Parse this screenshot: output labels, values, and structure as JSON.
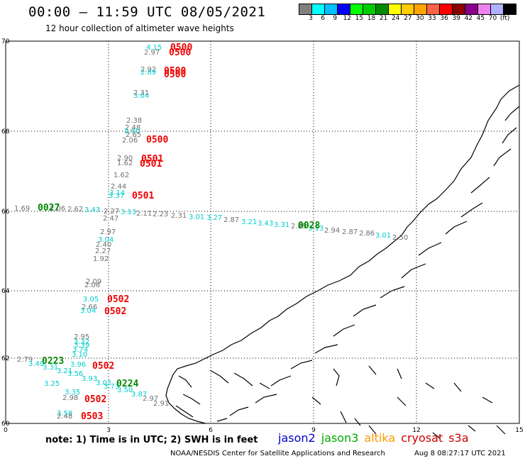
{
  "header": {
    "title": "00:00 – 11:59 UTC 08/05/2021",
    "subtitle": "12 hour collection of altimeter wave heights"
  },
  "colorbar": {
    "colors": [
      "#808080",
      "#00ffff",
      "#00bfff",
      "#0000ff",
      "#00ff00",
      "#00cd00",
      "#008b00",
      "#ffff00",
      "#ffcc00",
      "#ffa500",
      "#ff6347",
      "#ff0000",
      "#8b0000",
      "#8b008b",
      "#ee82ee",
      "#b0b0ff",
      "#000000"
    ],
    "labels": [
      "3",
      "6",
      "9",
      "12",
      "15",
      "18",
      "21",
      "24",
      "27",
      "30",
      "33",
      "36",
      "39",
      "42",
      "45",
      "70",
      "(ft)"
    ]
  },
  "axes": {
    "y_ticks": [
      "70",
      "68",
      "66",
      "64",
      "62",
      "60"
    ],
    "x_ticks": [
      "0",
      "3",
      "6",
      "9",
      "12",
      "15"
    ]
  },
  "observations": [
    {
      "v": "4.15",
      "c": "#00cccc"
    },
    {
      "v": "2.97",
      "c": "#707070"
    },
    {
      "v": "2.92",
      "c": "#707070"
    },
    {
      "v": "2.89",
      "c": "#00cccc"
    },
    {
      "v": "2.31",
      "c": "#707070"
    },
    {
      "v": "3.04",
      "c": "#00cccc"
    },
    {
      "v": "2.38",
      "c": "#707070"
    },
    {
      "v": "2.48",
      "c": "#707070"
    },
    {
      "v": "2.60",
      "c": "#00cccc"
    },
    {
      "v": "2.65",
      "c": "#707070"
    },
    {
      "v": "2.06",
      "c": "#707070"
    },
    {
      "v": "2.90",
      "c": "#707070"
    },
    {
      "v": "1.62",
      "c": "#707070"
    },
    {
      "v": "1.62",
      "c": "#707070"
    },
    {
      "v": "2.44",
      "c": "#707070"
    },
    {
      "v": "3.14",
      "c": "#00cccc"
    },
    {
      "v": "3.37",
      "c": "#00cccc"
    },
    {
      "v": "1.69",
      "c": "#707070"
    },
    {
      "v": "2.06",
      "c": "#707070"
    },
    {
      "v": "2.62",
      "c": "#707070"
    },
    {
      "v": "3.43",
      "c": "#00cccc"
    },
    {
      "v": "2.27",
      "c": "#707070"
    },
    {
      "v": "3.13",
      "c": "#00cccc"
    },
    {
      "v": "2.11",
      "c": "#707070"
    },
    {
      "v": "2.23",
      "c": "#707070"
    },
    {
      "v": "2.31",
      "c": "#707070"
    },
    {
      "v": "3.01",
      "c": "#00cccc"
    },
    {
      "v": "3.27",
      "c": "#00cccc"
    },
    {
      "v": "2.87",
      "c": "#707070"
    },
    {
      "v": "3.21",
      "c": "#00cccc"
    },
    {
      "v": "3.43",
      "c": "#00cccc"
    },
    {
      "v": "3.31",
      "c": "#00cccc"
    },
    {
      "v": "2.89",
      "c": "#707070"
    },
    {
      "v": "3.13",
      "c": "#00cccc"
    },
    {
      "v": "2.94",
      "c": "#707070"
    },
    {
      "v": "2.87",
      "c": "#707070"
    },
    {
      "v": "2.86",
      "c": "#707070"
    },
    {
      "v": "3.01",
      "c": "#00cccc"
    },
    {
      "v": "2.50",
      "c": "#707070"
    },
    {
      "v": "2.47",
      "c": "#707070"
    },
    {
      "v": "2.97",
      "c": "#707070"
    },
    {
      "v": "3.04",
      "c": "#00cccc"
    },
    {
      "v": "2.40",
      "c": "#707070"
    },
    {
      "v": "2.27",
      "c": "#707070"
    },
    {
      "v": "1.92",
      "c": "#707070"
    },
    {
      "v": "2.09",
      "c": "#707070"
    },
    {
      "v": "2.06",
      "c": "#707070"
    },
    {
      "v": "3.05",
      "c": "#00cccc"
    },
    {
      "v": "2.66",
      "c": "#707070"
    },
    {
      "v": "3.04",
      "c": "#00cccc"
    },
    {
      "v": "2.95",
      "c": "#707070"
    },
    {
      "v": "3.32",
      "c": "#00cccc"
    },
    {
      "v": "3.39",
      "c": "#00cccc"
    },
    {
      "v": "3.74",
      "c": "#00cccc"
    },
    {
      "v": "3.10",
      "c": "#00cccc"
    },
    {
      "v": "2.79",
      "c": "#707070"
    },
    {
      "v": "3.49",
      "c": "#00cccc"
    },
    {
      "v": "3.31",
      "c": "#00cccc"
    },
    {
      "v": "3.21",
      "c": "#00cccc"
    },
    {
      "v": "3.56",
      "c": "#00cccc"
    },
    {
      "v": "3.96",
      "c": "#00cccc"
    },
    {
      "v": "3.93",
      "c": "#00cccc"
    },
    {
      "v": "3.25",
      "c": "#00cccc"
    },
    {
      "v": "3.02",
      "c": "#00cccc"
    },
    {
      "v": "3.73",
      "c": "#00cccc"
    },
    {
      "v": "3.50",
      "c": "#00cccc"
    },
    {
      "v": "3.87",
      "c": "#00cccc"
    },
    {
      "v": "2.97",
      "c": "#707070"
    },
    {
      "v": "2.91",
      "c": "#707070"
    },
    {
      "v": "3.35",
      "c": "#00cccc"
    },
    {
      "v": "2.98",
      "c": "#707070"
    },
    {
      "v": "3.58",
      "c": "#00cccc"
    },
    {
      "v": "2.48",
      "c": "#707070"
    }
  ],
  "passes": [
    {
      "label": "0500",
      "c": "#ee0000"
    },
    {
      "label": "0500",
      "c": "#ee0000"
    },
    {
      "label": "0500",
      "c": "#ee0000"
    },
    {
      "label": "0500",
      "c": "#ee0000"
    },
    {
      "label": "0500",
      "c": "#ee0000"
    },
    {
      "label": "0501",
      "c": "#ee0000"
    },
    {
      "label": "0501",
      "c": "#ee0000"
    },
    {
      "label": "0501",
      "c": "#ee0000"
    },
    {
      "label": "0027",
      "c": "#008800"
    },
    {
      "label": "0028",
      "c": "#008800"
    },
    {
      "label": "0502",
      "c": "#ee0000"
    },
    {
      "label": "0502",
      "c": "#ee0000"
    },
    {
      "label": "0223",
      "c": "#008800"
    },
    {
      "label": "0502",
      "c": "#ee0000"
    },
    {
      "label": "0224",
      "c": "#008800"
    },
    {
      "label": "0502",
      "c": "#ee0000"
    },
    {
      "label": "0503",
      "c": "#ee0000"
    }
  ],
  "note": "note:  1) Time is in UTC;  2) SWH is in feet",
  "legend": [
    {
      "label": "jason2",
      "color": "#0000cc"
    },
    {
      "label": "jason3",
      "color": "#00aa00"
    },
    {
      "label": "altika",
      "color": "#ff9900"
    },
    {
      "label": "cryosat",
      "color": "#cc0000"
    },
    {
      "label": "s3a",
      "color": "#cc0000"
    }
  ],
  "credit": "NOAA/NESDIS Center for Satellite Applications and Research",
  "credit_time": "Aug  8 08:27:17 UTC 2021"
}
